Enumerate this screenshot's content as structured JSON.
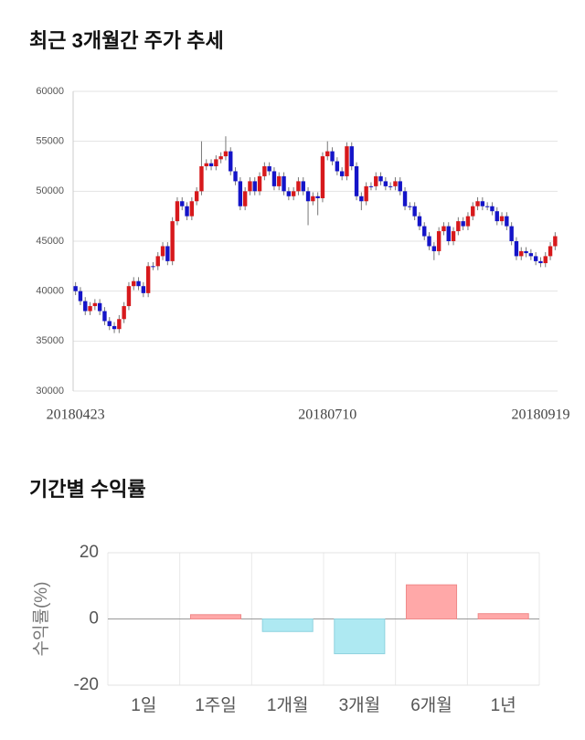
{
  "chart_data": [
    {
      "type": "candlestick",
      "title": "최근 3개월간 주가 추세",
      "categories": [
        "20180423",
        null,
        null,
        null,
        null,
        null,
        null,
        null,
        null,
        null,
        null,
        null,
        null,
        null,
        null,
        null,
        null,
        null,
        null,
        null,
        null,
        null,
        null,
        null,
        null,
        null,
        null,
        null,
        null,
        null,
        null,
        null,
        null,
        null,
        null,
        null,
        null,
        null,
        null,
        null,
        null,
        null,
        null,
        null,
        null,
        null,
        null,
        null,
        null,
        null,
        null,
        null,
        "20180710",
        null,
        null,
        null,
        null,
        null,
        null,
        null,
        null,
        null,
        null,
        null,
        null,
        null,
        null,
        null,
        null,
        null,
        null,
        null,
        null,
        null,
        null,
        null,
        null,
        null,
        null,
        null,
        null,
        null,
        null,
        null,
        null,
        null,
        null,
        null,
        null,
        null,
        null,
        null,
        null,
        null,
        null,
        null,
        "20180919",
        null,
        null,
        null
      ],
      "open": [
        40500,
        40000,
        39000,
        38000,
        38500,
        38800,
        38000,
        37000,
        36500,
        36200,
        37200,
        38500,
        40500,
        41000,
        40500,
        39800,
        42500,
        42500,
        43500,
        44500,
        43000,
        47000,
        49000,
        48500,
        47500,
        49000,
        50000,
        52500,
        52800,
        52500,
        53200,
        53500,
        54000,
        52000,
        51000,
        48500,
        50000,
        51000,
        50000,
        51500,
        52500,
        52000,
        50500,
        51500,
        50000,
        49500,
        50000,
        51000,
        50000,
        49000,
        49500,
        49300,
        53500,
        54000,
        53000,
        52000,
        51500,
        54500,
        52500,
        49500,
        49000,
        50500,
        50500,
        51500,
        51000,
        50500,
        50500,
        51000,
        50000,
        48500,
        48500,
        47500,
        46500,
        45500,
        44500,
        44000,
        46000,
        46500,
        45000,
        46000,
        47000,
        46500,
        47500,
        48500,
        49000,
        48500,
        48500,
        48000,
        47000,
        47500,
        46500,
        45000,
        43500,
        44000,
        43800,
        43500,
        43000,
        42800,
        43500,
        44500
      ],
      "high": [
        40900,
        40400,
        39400,
        38900,
        39200,
        39200,
        38400,
        37400,
        36900,
        37600,
        38900,
        40900,
        41400,
        41400,
        40900,
        42900,
        42900,
        43900,
        44900,
        44900,
        47400,
        49400,
        49400,
        48900,
        49400,
        50400,
        55000,
        53200,
        53200,
        53600,
        53900,
        55500,
        54400,
        52400,
        51400,
        50400,
        51400,
        51400,
        51900,
        52900,
        52900,
        52400,
        51900,
        51900,
        50400,
        50400,
        51400,
        51400,
        50400,
        49900,
        49900,
        53900,
        55000,
        54400,
        53400,
        52400,
        54900,
        54900,
        52900,
        49900,
        50900,
        50900,
        51900,
        51900,
        51400,
        50900,
        51400,
        51400,
        50400,
        48900,
        48900,
        47900,
        46900,
        45900,
        44900,
        46400,
        46900,
        46900,
        46400,
        47400,
        47400,
        47900,
        48900,
        49400,
        49400,
        48900,
        48900,
        48400,
        47900,
        47900,
        46900,
        45400,
        44400,
        44400,
        44200,
        43900,
        43400,
        43900,
        44900,
        45900
      ],
      "low": [
        39600,
        38600,
        37600,
        37600,
        38100,
        37600,
        36600,
        36100,
        35800,
        35800,
        36800,
        38100,
        40100,
        40100,
        39400,
        39400,
        42100,
        42100,
        43100,
        42600,
        42600,
        46600,
        48100,
        47100,
        47100,
        48600,
        49600,
        52100,
        52100,
        52100,
        52800,
        53100,
        51600,
        50600,
        48100,
        48100,
        49600,
        49600,
        49600,
        51100,
        51600,
        50100,
        50100,
        49600,
        49100,
        49100,
        49600,
        49600,
        46600,
        48600,
        47600,
        48900,
        53100,
        52600,
        51600,
        51100,
        51100,
        52100,
        49100,
        48100,
        48600,
        50100,
        50100,
        50600,
        50100,
        50100,
        50100,
        49600,
        48100,
        48100,
        47100,
        46100,
        45100,
        44100,
        43100,
        43600,
        45600,
        44600,
        44600,
        45600,
        46100,
        46100,
        47100,
        48100,
        48100,
        48100,
        47600,
        46600,
        46600,
        46100,
        44600,
        43100,
        43100,
        43400,
        43100,
        42600,
        42400,
        42400,
        43100,
        44100
      ],
      "close": [
        40000,
        39000,
        38000,
        38500,
        38800,
        38000,
        37000,
        36500,
        36200,
        37200,
        38500,
        40500,
        41000,
        40500,
        39800,
        42500,
        42500,
        43500,
        44500,
        43000,
        47000,
        49000,
        48500,
        47500,
        49000,
        50000,
        52500,
        52800,
        52500,
        53200,
        53500,
        54000,
        52000,
        51000,
        48500,
        50000,
        51000,
        50000,
        51500,
        52500,
        52000,
        50500,
        51500,
        50000,
        49500,
        50000,
        51000,
        50000,
        49000,
        49500,
        49300,
        53500,
        54000,
        53000,
        52000,
        51500,
        54500,
        52500,
        49500,
        49000,
        50500,
        50500,
        51500,
        51000,
        50500,
        50500,
        51000,
        50000,
        48500,
        48500,
        47500,
        46500,
        45500,
        44500,
        44000,
        46000,
        46500,
        45000,
        46000,
        47000,
        46500,
        47500,
        48500,
        49000,
        48500,
        48500,
        48000,
        47000,
        47500,
        46500,
        45000,
        43500,
        44000,
        43800,
        43500,
        43000,
        42800,
        43500,
        44500,
        45500
      ],
      "up_color": "#d7191c",
      "down_color": "#1414c8",
      "ylim": [
        30000,
        60000
      ],
      "yticks": [
        30000,
        35000,
        40000,
        45000,
        50000,
        55000,
        60000
      ],
      "grid": true
    },
    {
      "type": "bar",
      "title": "기간별 수익률",
      "ylabel": "수익률(%)",
      "categories": [
        "1일",
        "1주일",
        "1개월",
        "3개월",
        "6개월",
        "1년"
      ],
      "values": [
        0,
        1.3,
        -3.8,
        -10.5,
        10.3,
        1.6
      ],
      "positive_color": "#ffa8a8",
      "negative_color": "#aee9f2",
      "ylim": [
        -20,
        20
      ],
      "yticks": [
        -20,
        0,
        20
      ],
      "grid": true
    }
  ]
}
